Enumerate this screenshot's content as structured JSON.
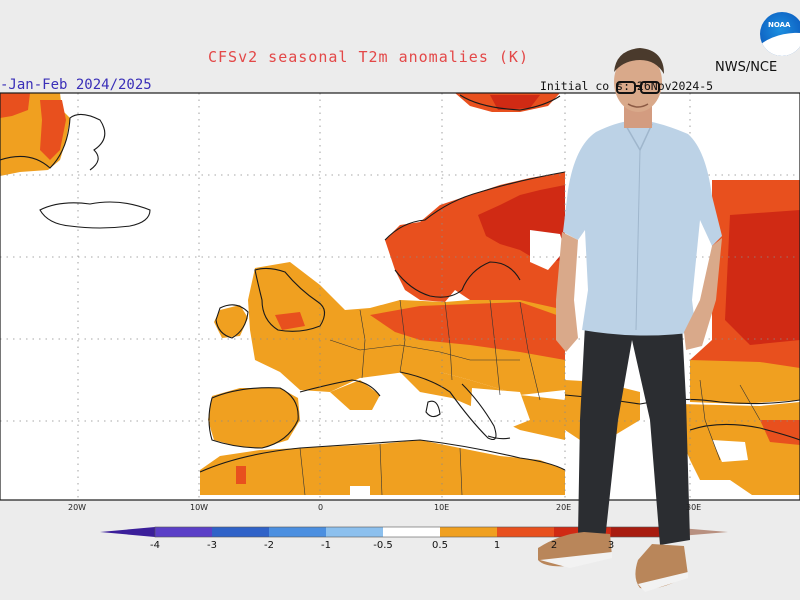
{
  "header": {
    "title": "CFSv2 seasonal T2m anomalies (K)",
    "season": "-Jan-Feb 2024/2025",
    "initial_conditions": "Initial co     s: 26Nov2024-5",
    "agency": "NWS/NCE"
  },
  "logo": {
    "name": "noaa-logo",
    "text": "NOAA"
  },
  "map": {
    "longitude_labels": [
      "20W",
      "10W",
      "0",
      "10E",
      "20E",
      "30E"
    ]
  },
  "colorbar": {
    "ticks": [
      "-4",
      "-3",
      "-2",
      "-1",
      "-0.5",
      "0.5",
      "1",
      "2",
      "3"
    ],
    "colors": {
      "lt_neg4": "#3b1f9a",
      "neg4_neg3": "#5b3fc7",
      "neg3_neg2": "#2f62c8",
      "neg2_neg1": "#4b8fe0",
      "neg1_neg05": "#8cc0ee",
      "neutral": "#ffffff",
      "p05_p1": "#f0a020",
      "p1_p2": "#e8501e",
      "p2_p3": "#d02a14",
      "p3_p4": "#a81c10",
      "gt_p4": "#b89080"
    }
  },
  "colors": {
    "title": "#e34848",
    "season": "#3a2fb8",
    "anomaly_light": "#f0a020",
    "anomaly_mid": "#e8501e",
    "anomaly_strong": "#d02a14"
  }
}
